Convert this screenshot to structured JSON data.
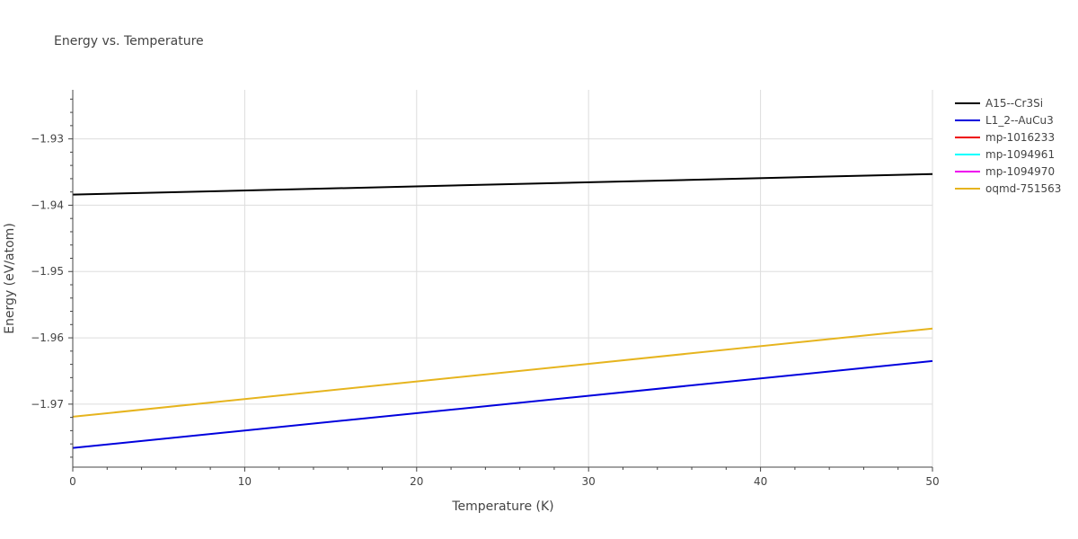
{
  "chart_data": {
    "type": "line",
    "title": "Energy vs. Temperature",
    "xlabel": "Temperature (K)",
    "ylabel": "Energy (eV/atom)",
    "xlim": [
      0,
      50
    ],
    "ylim": [
      -1.9795,
      -1.9226
    ],
    "x_ticks": [
      0,
      10,
      20,
      30,
      40,
      50
    ],
    "x_tick_labels": [
      "0",
      "10",
      "20",
      "30",
      "40",
      "50"
    ],
    "y_ticks": [
      -1.97,
      -1.96,
      -1.95,
      -1.94,
      -1.93
    ],
    "y_tick_labels": [
      "−1.97",
      "−1.96",
      "−1.95",
      "−1.94",
      "−1.93"
    ],
    "grid": true,
    "legend_position": "right",
    "series": [
      {
        "name": "A15--Cr3Si",
        "color": "#000000",
        "x": [
          0,
          50
        ],
        "y": [
          -1.9384,
          -1.9353
        ]
      },
      {
        "name": "L1_2--AuCu3",
        "color": "#0000dd",
        "x": [
          0,
          50
        ],
        "y": [
          -1.9766,
          -1.9635
        ]
      },
      {
        "name": "mp-1016233",
        "color": "#ee0000",
        "x": [],
        "y": []
      },
      {
        "name": "mp-1094961",
        "color": "#00ffff",
        "x": [],
        "y": []
      },
      {
        "name": "mp-1094970",
        "color": "#ee00ee",
        "x": [],
        "y": []
      },
      {
        "name": "oqmd-751563",
        "color": "#e6b41e",
        "x": [
          0,
          50
        ],
        "y": [
          -1.9719,
          -1.9586
        ]
      }
    ]
  }
}
